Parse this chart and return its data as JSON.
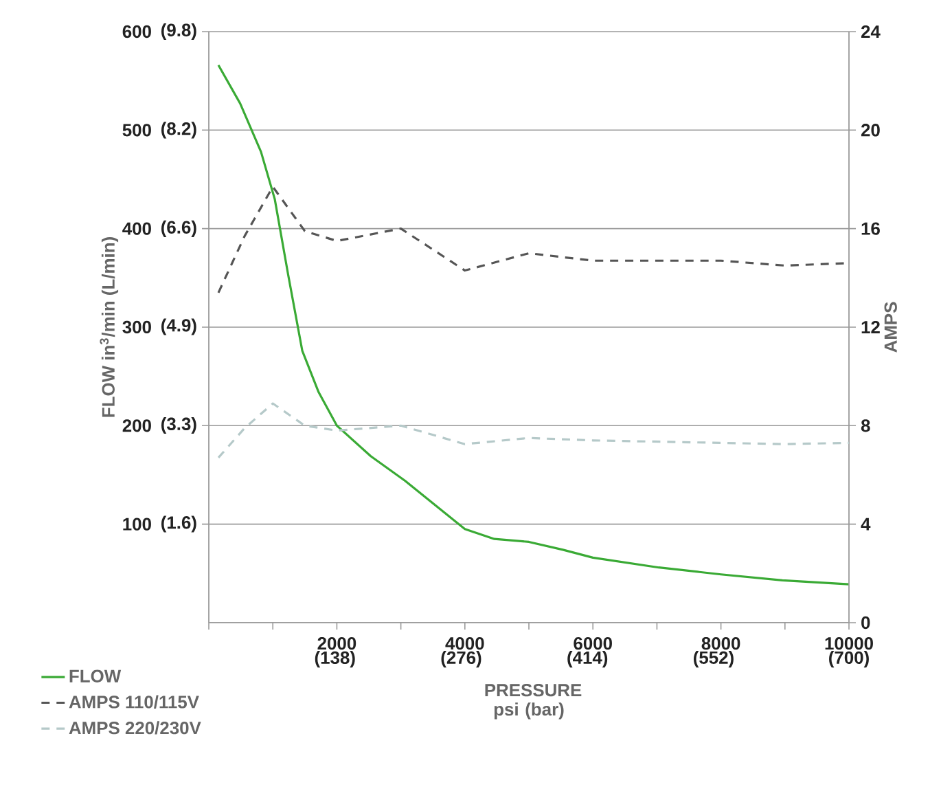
{
  "chart_data": {
    "type": "line",
    "xlabel": "PRESSURE psi (bar)",
    "ylabel": "FLOW in$^{3}$/min (L/min)",
    "y2label": "AMPS",
    "xlim": [
      0,
      10000
    ],
    "xticks": [
      {
        "value": 0,
        "label": null
      },
      {
        "value": 1000,
        "label": null
      },
      2000,
      {
        "value": 3000,
        "label": null
      },
      4000,
      {
        "value": 5000,
        "label": null
      },
      6000,
      {
        "value": 7000,
        "label": null
      },
      8000,
      {
        "value": 9000,
        "label": null
      },
      10000
    ],
    "x2lim": [
      0,
      700
    ],
    "x2ticks": [
      {
        "value": 138,
        "label": "(138)"
      },
      {
        "value": 276,
        "label": "(276)"
      },
      {
        "value": 414,
        "label": "(414)"
      },
      {
        "value": 552,
        "label": "(552)"
      },
      {
        "value": 700,
        "label": "(700)"
      }
    ],
    "ylim": [
      0,
      600
    ],
    "yticks": [
      100,
      200,
      300,
      400,
      500,
      600
    ],
    "y3lim": [
      0,
      9.83
    ],
    "y3ticks": [
      {
        "value": 1.64,
        "label": "(1.6)"
      },
      {
        "value": 3.28,
        "label": "(3.3)"
      },
      {
        "value": 4.92,
        "label": "(4.9)"
      },
      {
        "value": 6.55,
        "label": "(6.6)"
      },
      {
        "value": 8.19,
        "label": "(8.2)"
      },
      {
        "value": 9.83,
        "label": "(9.8)"
      }
    ],
    "y2lim": [
      0,
      24
    ],
    "y2ticks": [
      0,
      4,
      8,
      12,
      16,
      20,
      24
    ],
    "grid": "y",
    "legend": "bottom left",
    "series": [
      {
        "name": "FLOW",
        "color": "#3aaa35",
        "line_style": "solid",
        "x": [
          150,
          490,
          815,
          1030,
          1240,
          1460,
          1715,
          2000,
          2530,
          3065,
          3600,
          4000,
          4460,
          5000,
          5530,
          6000,
          7030,
          8000,
          8960,
          10000
        ],
        "values": [
          566,
          527,
          478,
          430,
          353,
          276,
          234,
          200,
          169,
          144,
          116,
          95,
          85,
          82,
          74,
          66,
          56,
          49,
          43,
          39
        ]
      },
      {
        "name": "AMPS 110/115V",
        "color": "#555555",
        "line_style": "dashed",
        "axis": "y2",
        "x": [
          150,
          560,
          1000,
          1500,
          2000,
          3000,
          4000,
          5000,
          6000,
          8000,
          9000,
          10000
        ],
        "values": [
          13.4,
          15.7,
          17.7,
          15.9,
          15.5,
          16.0,
          14.3,
          15.0,
          14.7,
          14.7,
          14.5,
          14.6
        ]
      },
      {
        "name": "AMPS 220/230V",
        "color": "#b5c9c9",
        "line_style": "dashed",
        "axis": "y2",
        "x": [
          150,
          560,
          1000,
          1500,
          2000,
          3000,
          4000,
          5000,
          6000,
          8000,
          9000,
          10000
        ],
        "values": [
          6.7,
          7.9,
          8.9,
          8.0,
          7.8,
          8.0,
          7.25,
          7.5,
          7.4,
          7.3,
          7.25,
          7.3
        ]
      }
    ]
  }
}
